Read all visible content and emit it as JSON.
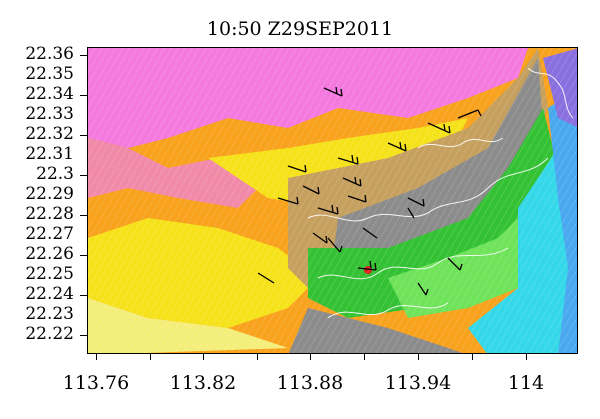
{
  "map": {
    "title": "10:50 Z29SEP2011",
    "y_axis_labels": [
      "22.36",
      "22.35",
      "22.34",
      "22.33",
      "22.32",
      "22.31",
      "22.3",
      "22.29",
      "22.28",
      "22.27",
      "22.26",
      "22.25",
      "22.24",
      "22.23",
      "22.22"
    ],
    "x_axis_labels": [
      "113.76",
      "113.82",
      "113.88",
      "113.94",
      "114"
    ],
    "lat_range": [
      22.215,
      22.365
    ],
    "lon_range": [
      113.755,
      114.06
    ],
    "colors": {
      "magenta": "#f47ae0",
      "pink": "#f08aa8",
      "orange": "#f8a21e",
      "yellow": "#f6e21a",
      "light_yellow": "#f4ee7a",
      "tan": "#c6a05e",
      "gray": "#8c8c8c",
      "green": "#34c234",
      "bright_green": "#6fe35a",
      "cyan": "#34d8e8",
      "blue": "#4aa8f0",
      "violet": "#8a6fe0",
      "red": "#e02020"
    }
  }
}
